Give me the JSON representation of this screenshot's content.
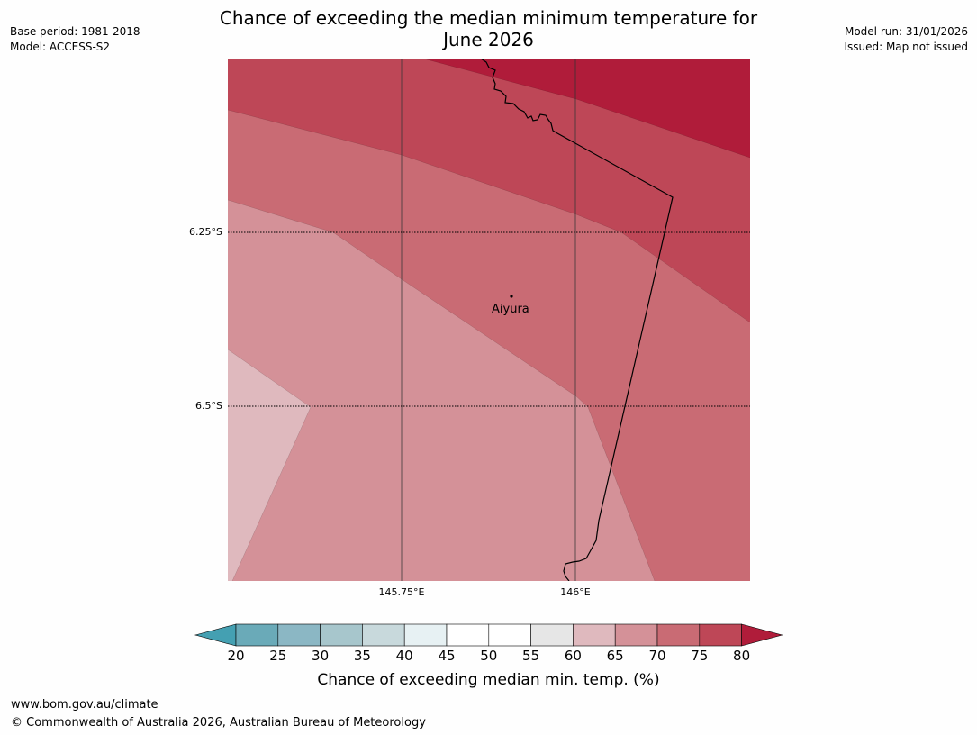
{
  "title": {
    "line1": "Chance of exceeding the median minimum temperature for",
    "line2": "June 2026"
  },
  "meta_left": {
    "base_period": "Base period: 1981-2018",
    "model": "Model: ACCESS-S2"
  },
  "meta_right": {
    "model_run": "Model run: 31/01/2026",
    "issued": "Issued: Map not issued"
  },
  "map": {
    "lat_labels": [
      "6.25°S",
      "6.5°S"
    ],
    "lon_labels": [
      "145.75°E",
      "146°E"
    ],
    "place": "Aiyura",
    "region_colors": {
      "c60_65": "#dfb9be",
      "c65_70": "#d49198",
      "c70_75": "#c96b74",
      "c75_80": "#be4757",
      "c80": "#b01c3a"
    }
  },
  "colorbar": {
    "ticks": [
      "20",
      "25",
      "30",
      "35",
      "40",
      "45",
      "50",
      "55",
      "60",
      "65",
      "70",
      "75",
      "80"
    ],
    "colors": [
      "#44a0b2",
      "#6aaab8",
      "#8bb7c4",
      "#a7c6cc",
      "#c8d9dc",
      "#e7f1f3",
      "#ffffff",
      "#ffffff",
      "#e6e6e6",
      "#dfb9be",
      "#d49198",
      "#c96b74",
      "#be4757",
      "#b01c3a"
    ],
    "label": "Chance of exceeding median min. temp. (%)"
  },
  "footer": {
    "url": "www.bom.gov.au/climate",
    "copyright": "© Commonwealth of Australia 2026, Australian Bureau of Meteorology"
  }
}
